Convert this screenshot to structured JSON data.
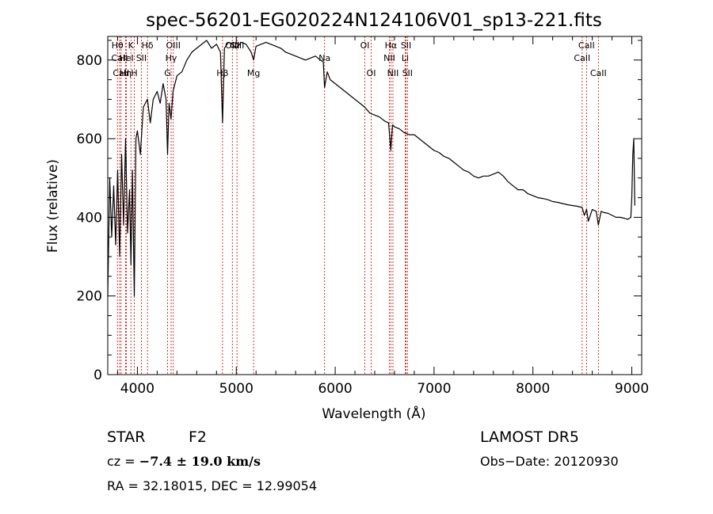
{
  "chart_data": {
    "type": "line",
    "title": "spec-56201-EG020224N124106V01_sp13-221.fits",
    "xlabel": "Wavelength (Å)",
    "ylabel": "Flux (relative)",
    "xlim": [
      3700,
      9100
    ],
    "ylim": [
      0,
      860
    ],
    "xticks": [
      "4000",
      "5000",
      "6000",
      "7000",
      "8000",
      "9000"
    ],
    "yticks": [
      "0",
      "200",
      "400",
      "600",
      "800"
    ],
    "grid": false,
    "series": [
      {
        "x": [
          3700,
          3720,
          3740,
          3760,
          3780,
          3800,
          3820,
          3840,
          3860,
          3880,
          3900,
          3920,
          3935,
          3950,
          3968,
          3985,
          4000,
          4030,
          4060,
          4101,
          4130,
          4160,
          4200,
          4230,
          4260,
          4290,
          4305,
          4320,
          4340,
          4360,
          4400,
          4450,
          4500,
          4550,
          4600,
          4650,
          4700,
          4750,
          4800,
          4840,
          4861,
          4880,
          4920,
          4960,
          5000,
          5050,
          5100,
          5150,
          5175,
          5200,
          5250,
          5300,
          5350,
          5400,
          5450,
          5500,
          5550,
          5600,
          5650,
          5700,
          5750,
          5800,
          5850,
          5880,
          5893,
          5920,
          5950,
          6000,
          6050,
          6100,
          6150,
          6200,
          6250,
          6300,
          6350,
          6400,
          6450,
          6500,
          6540,
          6563,
          6580,
          6600,
          6650,
          6700,
          6750,
          6800,
          6850,
          6900,
          6950,
          7000,
          7050,
          7100,
          7150,
          7200,
          7250,
          7300,
          7350,
          7400,
          7450,
          7500,
          7550,
          7600,
          7650,
          7700,
          7750,
          7800,
          7850,
          7900,
          7950,
          8000,
          8050,
          8100,
          8150,
          8200,
          8250,
          8300,
          8350,
          8400,
          8450,
          8498,
          8520,
          8542,
          8560,
          8600,
          8640,
          8662,
          8690,
          8720,
          8760,
          8800,
          8840,
          8880,
          8920,
          8960,
          8990,
          9000,
          9010,
          9020,
          9030
        ],
        "y": [
          200,
          500,
          350,
          480,
          330,
          520,
          300,
          560,
          380,
          600,
          360,
          470,
          280,
          520,
          200,
          600,
          620,
          560,
          680,
          700,
          640,
          700,
          720,
          690,
          740,
          700,
          560,
          690,
          650,
          720,
          760,
          770,
          800,
          820,
          830,
          840,
          850,
          830,
          840,
          820,
          640,
          830,
          845,
          840,
          830,
          845,
          840,
          820,
          800,
          835,
          840,
          845,
          840,
          835,
          830,
          820,
          815,
          810,
          805,
          800,
          805,
          810,
          800,
          795,
          730,
          770,
          750,
          740,
          730,
          720,
          710,
          700,
          690,
          680,
          665,
          660,
          655,
          645,
          640,
          570,
          635,
          630,
          625,
          615,
          610,
          610,
          600,
          590,
          580,
          570,
          565,
          555,
          550,
          540,
          530,
          520,
          515,
          505,
          500,
          505,
          505,
          510,
          515,
          505,
          490,
          480,
          470,
          470,
          460,
          455,
          450,
          448,
          445,
          440,
          438,
          435,
          432,
          430,
          428,
          425,
          405,
          420,
          390,
          420,
          415,
          380,
          415,
          412,
          410,
          405,
          400,
          400,
          398,
          395,
          400,
          450,
          560,
          600,
          430
        ]
      }
    ],
    "spectral_lines": [
      {
        "label": "Hθ",
        "x": 3798,
        "row": 1
      },
      {
        "label": "CaII",
        "x": 3820,
        "row": 2
      },
      {
        "label": "CaII",
        "x": 3835,
        "row": 3
      },
      {
        "label": "K",
        "x": 3934,
        "row": 1
      },
      {
        "label": "HeI",
        "x": 3889,
        "row": 2
      },
      {
        "label": "Hη",
        "x": 3880,
        "row": 3
      },
      {
        "label": "Hδ",
        "x": 4102,
        "row": 1
      },
      {
        "label": "SII",
        "x": 4040,
        "row": 2
      },
      {
        "label": "H",
        "x": 3969,
        "row": 3
      },
      {
        "label": "OIII",
        "x": 4363,
        "row": 1
      },
      {
        "label": "Hγ",
        "x": 4341,
        "row": 2
      },
      {
        "label": "G",
        "x": 4305,
        "row": 3
      },
      {
        "label": "Hβ",
        "x": 4861,
        "row": 3
      },
      {
        "label": "OIII",
        "x": 4960,
        "row": 1
      },
      {
        "label": "OIII",
        "x": 5007,
        "row": 1
      },
      {
        "label": "Mg",
        "x": 5175,
        "row": 3
      },
      {
        "label": "Na",
        "x": 5893,
        "row": 2
      },
      {
        "label": "OI",
        "x": 6300,
        "row": 1
      },
      {
        "label": "OI",
        "x": 6364,
        "row": 3
      },
      {
        "label": "Hα",
        "x": 6563,
        "row": 1
      },
      {
        "label": "NII",
        "x": 6548,
        "row": 2
      },
      {
        "label": "NII",
        "x": 6584,
        "row": 3
      },
      {
        "label": "SII",
        "x": 6717,
        "row": 1
      },
      {
        "label": "Li",
        "x": 6708,
        "row": 2
      },
      {
        "label": "SII",
        "x": 6731,
        "row": 3
      },
      {
        "label": "CaII",
        "x": 8542,
        "row": 1
      },
      {
        "label": "CaII",
        "x": 8498,
        "row": 2
      },
      {
        "label": "CaII",
        "x": 8662,
        "row": 3
      }
    ]
  },
  "info": {
    "object_class": "STAR",
    "subclass": "F2",
    "survey": "LAMOST  DR5",
    "cz_prefix": "cz = ",
    "cz_value": "−7.4 ± 19.0 km/s",
    "obs_date": "Obs−Date: 20120930",
    "coords": "RA =  32.18015, DEC =  12.99054"
  },
  "colors": {
    "spectrum": "#000000",
    "line_markers": "#cc0000",
    "axes": "#000000"
  }
}
